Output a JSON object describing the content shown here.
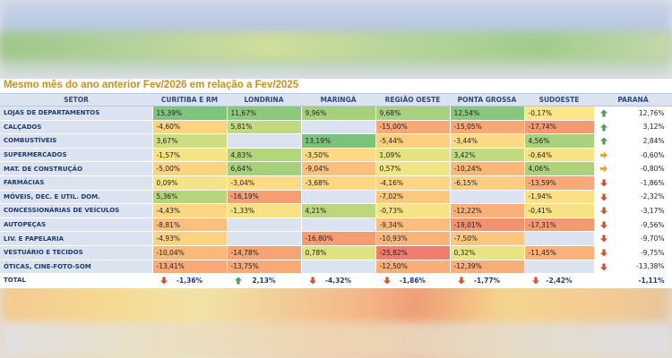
{
  "title": "Mesmo mês do ano anterior Fev/2026 em relação a Fev/2025",
  "headers": [
    "SETOR",
    "CURITIBA E RM",
    "LONDRINA",
    "MARINGÁ",
    "REGIÃO OESTE",
    "PONTA GROSSA",
    "SUDOESTE",
    "PARANÁ"
  ],
  "rows": [
    {
      "setor": "LOJAS DE DEPARTAMENTOS",
      "cells": [
        {
          "v": "15,39%",
          "c": "#7ec47a"
        },
        {
          "v": "11,67%",
          "c": "#8ec97a"
        },
        {
          "v": "9,96%",
          "c": "#a7d07c"
        },
        {
          "v": "9,68%",
          "c": "#a9d07c"
        },
        {
          "v": "12,54%",
          "c": "#89c77a"
        },
        {
          "v": "-0,17%",
          "c": "#fbe787"
        }
      ],
      "parana": "12,76%",
      "icon": "up"
    },
    {
      "setor": "CALÇADOS",
      "cells": [
        {
          "v": "-4,60%",
          "c": "#fcd381"
        },
        {
          "v": "5,81%",
          "c": "#c2d97f"
        },
        {
          "v": "",
          "c": "#dbe3f1"
        },
        {
          "v": "-15,00%",
          "c": "#f7a877"
        },
        {
          "v": "-15,05%",
          "c": "#f7a877"
        },
        {
          "v": "-17,74%",
          "c": "#f49a73"
        }
      ],
      "parana": "3,12%",
      "icon": "up"
    },
    {
      "setor": "COMBUSTÍVEIS",
      "cells": [
        {
          "v": "3,67%",
          "c": "#cedd80"
        },
        {
          "v": "",
          "c": "#dbe3f1"
        },
        {
          "v": "13,19%",
          "c": "#7cc37a"
        },
        {
          "v": "-5,44%",
          "c": "#fcd07f"
        },
        {
          "v": "-3,44%",
          "c": "#fdda83"
        },
        {
          "v": "4,56%",
          "c": "#a9d07c"
        }
      ],
      "parana": "2,84%",
      "icon": "up"
    },
    {
      "setor": "SUPERMERCADOS",
      "cells": [
        {
          "v": "-1,57%",
          "c": "#f6e386"
        },
        {
          "v": "4,83%",
          "c": "#b5d57d"
        },
        {
          "v": "-3,50%",
          "c": "#fdda83"
        },
        {
          "v": "1,09%",
          "c": "#e6e384"
        },
        {
          "v": "3,42%",
          "c": "#c2d97f"
        },
        {
          "v": "-0,64%",
          "c": "#f6e386"
        }
      ],
      "parana": "-0,60%",
      "icon": "right"
    },
    {
      "setor": "MAT. DE CONSTRUÇÃO",
      "cells": [
        {
          "v": "-5,00%",
          "c": "#fcd381"
        },
        {
          "v": "6,64%",
          "c": "#a7d07c"
        },
        {
          "v": "-9,04%",
          "c": "#fbc07b"
        },
        {
          "v": "0,57%",
          "c": "#f0e485"
        },
        {
          "v": "-10,24%",
          "c": "#f9b77a"
        },
        {
          "v": "4,06%",
          "c": "#aed27c"
        }
      ],
      "parana": "-0,80%",
      "icon": "right"
    },
    {
      "setor": "FARMÁCIAS",
      "cells": [
        {
          "v": "0,09%",
          "c": "#f4e486"
        },
        {
          "v": "-3,04%",
          "c": "#fddb83"
        },
        {
          "v": "-3,68%",
          "c": "#fdd883"
        },
        {
          "v": "-4,16%",
          "c": "#fcd682"
        },
        {
          "v": "-6,15%",
          "c": "#fccd80"
        },
        {
          "v": "-13,59%",
          "c": "#f7a977"
        }
      ],
      "parana": "-1,86%",
      "icon": "down"
    },
    {
      "setor": "MÓVEIS, DEC. E UTIL. DOM.",
      "cells": [
        {
          "v": "5,36%",
          "c": "#b5d57d"
        },
        {
          "v": "-16,19%",
          "c": "#f59e74"
        },
        {
          "v": "",
          "c": "#dbe3f1"
        },
        {
          "v": "-7,02%",
          "c": "#fbc87e"
        },
        {
          "v": "",
          "c": "#dbe3f1"
        },
        {
          "v": "-1,94%",
          "c": "#fbe085"
        }
      ],
      "parana": "-2,32%",
      "icon": "down"
    },
    {
      "setor": "CONCESSIONÁRIAS DE VEÍCULOS",
      "cells": [
        {
          "v": "-4,43%",
          "c": "#fcd682"
        },
        {
          "v": "-1,33%",
          "c": "#f7e386"
        },
        {
          "v": "4,21%",
          "c": "#bcd77e"
        },
        {
          "v": "-0,73%",
          "c": "#f6e386"
        },
        {
          "v": "-12,22%",
          "c": "#f8b078"
        },
        {
          "v": "-0,41%",
          "c": "#f4e486"
        }
      ],
      "parana": "-3,17%",
      "icon": "down"
    },
    {
      "setor": "AUTOPEÇAS",
      "cells": [
        {
          "v": "-8,81%",
          "c": "#fbc17b"
        },
        {
          "v": "",
          "c": "#dbe3f1"
        },
        {
          "v": "",
          "c": "#dbe3f1"
        },
        {
          "v": "-9,34%",
          "c": "#fbbe7b"
        },
        {
          "v": "-19,01%",
          "c": "#f39271"
        },
        {
          "v": "-17,31%",
          "c": "#f49a73"
        }
      ],
      "parana": "-9,56%",
      "icon": "down"
    },
    {
      "setor": "LIV. E PAPELARIA",
      "cells": [
        {
          "v": "-4,93%",
          "c": "#fcd381"
        },
        {
          "v": "",
          "c": "#dbe3f1"
        },
        {
          "v": "-16,80%",
          "c": "#f59c73"
        },
        {
          "v": "-10,93%",
          "c": "#f9b479"
        },
        {
          "v": "-7,50%",
          "c": "#fbc67d"
        },
        {
          "v": "",
          "c": "#dbe3f1"
        }
      ],
      "parana": "-9,70%",
      "icon": "down"
    },
    {
      "setor": "VESTUÁRIO E TECIDOS",
      "cells": [
        {
          "v": "-10,04%",
          "c": "#fab879"
        },
        {
          "v": "-14,78%",
          "c": "#f6a476"
        },
        {
          "v": "0,78%",
          "c": "#dfe283"
        },
        {
          "v": "-25,82%",
          "c": "#ef7c6c"
        },
        {
          "v": "0,32%",
          "c": "#e9e384"
        },
        {
          "v": "-11,45%",
          "c": "#f9b279"
        }
      ],
      "parana": "-9,75%",
      "icon": "down"
    },
    {
      "setor": "ÓTICAS, CINE-FOTO-SOM",
      "cells": [
        {
          "v": "-13,41%",
          "c": "#f7aa77"
        },
        {
          "v": "-13,75%",
          "c": "#f7a977"
        },
        {
          "v": "",
          "c": "#dbe3f1"
        },
        {
          "v": "-12,50%",
          "c": "#f8ae78"
        },
        {
          "v": "-12,39%",
          "c": "#f8ae78"
        },
        {
          "v": "",
          "c": "#dbe3f1"
        }
      ],
      "parana": "-13,38%",
      "icon": "down"
    }
  ],
  "total": {
    "label": "TOTAL",
    "cells": [
      {
        "v": "-1,36%",
        "icon": "down"
      },
      {
        "v": "2,13%",
        "icon": "up"
      },
      {
        "v": "-4,32%",
        "icon": "down"
      },
      {
        "v": "-1,86%",
        "icon": "down"
      },
      {
        "v": "-1,77%",
        "icon": "down"
      },
      {
        "v": "-2,42%",
        "icon": "down"
      }
    ],
    "parana": "-1,11%",
    "icon": "down"
  },
  "icon_colors": {
    "up": "#4f9a5a",
    "right": "#e6a53a",
    "down": "#c9552e"
  }
}
